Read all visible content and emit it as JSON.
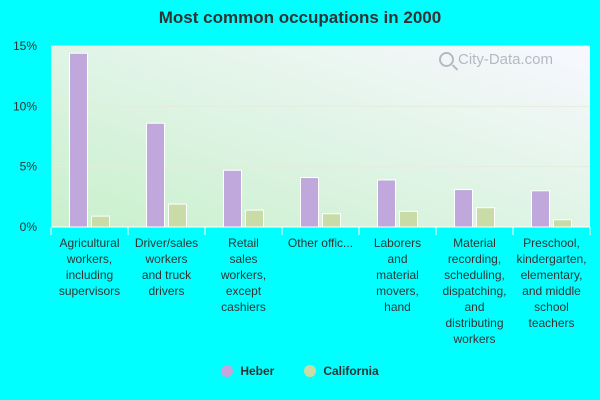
{
  "chart_data": {
    "type": "bar",
    "title": "Most common occupations in 2000",
    "categories": [
      [
        "Agricultural",
        "workers,",
        "including",
        "supervisors"
      ],
      [
        "Driver/sales",
        "workers",
        "and truck",
        "drivers"
      ],
      [
        "Retail",
        "sales",
        "workers,",
        "except",
        "cashiers"
      ],
      [
        "Other offic..."
      ],
      [
        "Laborers",
        "and",
        "material",
        "movers,",
        "hand"
      ],
      [
        "Material",
        "recording,",
        "scheduling,",
        "dispatching,",
        "and",
        "distributing",
        "workers"
      ],
      [
        "Preschool,",
        "kindergarten,",
        "elementary,",
        "and middle",
        "school",
        "teachers"
      ]
    ],
    "series": [
      {
        "name": "Heber",
        "color": "#c0a8dc",
        "values": [
          14.4,
          8.6,
          4.7,
          4.1,
          3.9,
          3.1,
          3.0
        ]
      },
      {
        "name": "California",
        "color": "#c9dca8",
        "values": [
          0.9,
          1.9,
          1.4,
          1.1,
          1.3,
          1.6,
          0.6
        ]
      }
    ],
    "yticks": [
      "0%",
      "5%",
      "10%",
      "15%"
    ],
    "ylim": [
      0,
      15
    ],
    "grid": true,
    "legend": "bottom-center"
  },
  "watermark": {
    "text": "City-Data.com",
    "icon": "magnifier-icon"
  }
}
